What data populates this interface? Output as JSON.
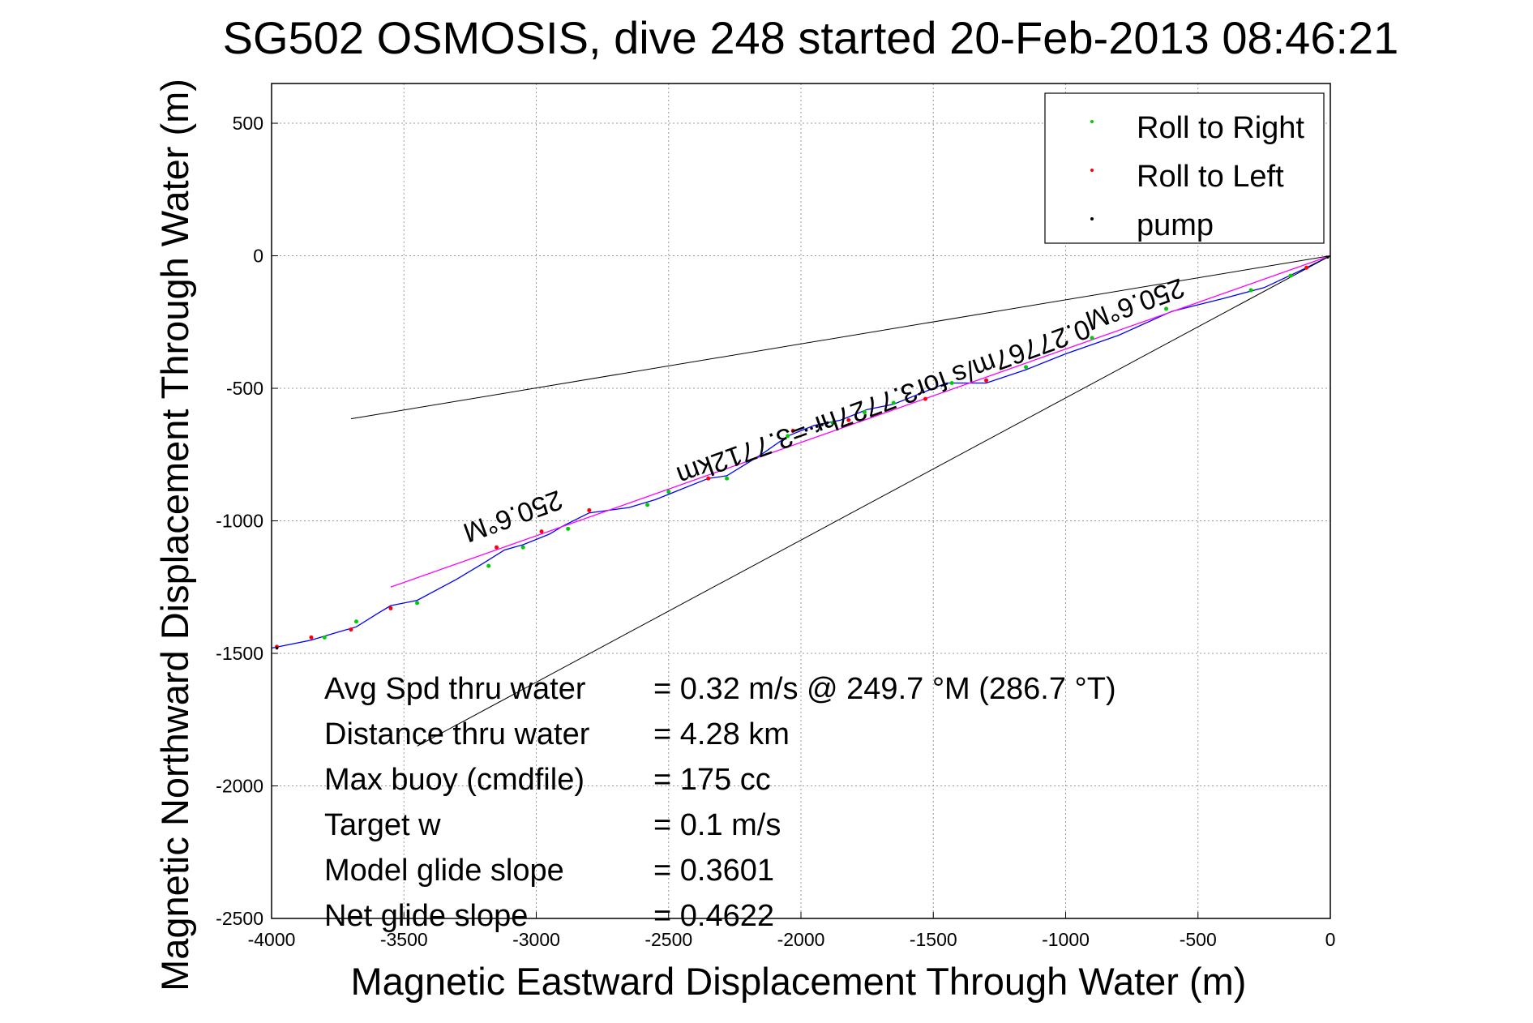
{
  "chart_data": {
    "type": "line",
    "title": "SG502 OSMOSIS, dive 248 started 20-Feb-2013 08:46:21",
    "xlabel": "Magnetic Eastward Displacement Through Water (m)",
    "ylabel": "Magnetic Northward Displacement Through Water (m)",
    "xlim": [
      -4000,
      0
    ],
    "ylim": [
      -2500,
      650
    ],
    "grid": true,
    "x_ticks": [
      "-4000",
      "-3500",
      "-3000",
      "-2500",
      "-2000",
      "-1500",
      "-1000",
      "-500",
      "0"
    ],
    "y_ticks": [
      "500",
      "0",
      "-500",
      "-1000",
      "-1500",
      "-2000",
      "-2500"
    ],
    "legend": {
      "position": "top-right",
      "entries": [
        "Roll to Right",
        "Roll to Left",
        "pump"
      ]
    },
    "colors": {
      "track": "#0000ff",
      "heading_line": "#ff00ff",
      "roll_right": "#00cc00",
      "roll_left": "#ff0000",
      "pump": "#000000",
      "cone": "#000000"
    },
    "series": [
      {
        "x": [
          0,
          -100,
          -250,
          -400,
          -600,
          -800,
          -1000,
          -1150,
          -1300,
          -1450,
          -1550,
          -1650,
          -1750,
          -1850,
          -1950,
          -2050,
          -2150,
          -2280,
          -2350,
          -2450,
          -2550,
          -2650,
          -2800,
          -2900,
          -2950,
          -3050,
          -3120,
          -3200,
          -3300,
          -3450,
          -3550,
          -3600,
          -3680,
          -3750,
          -3850,
          -3950,
          -4000
        ],
        "y": [
          0,
          -50,
          -120,
          -160,
          -210,
          -300,
          -370,
          -430,
          -480,
          -480,
          -520,
          -560,
          -580,
          -620,
          -640,
          -680,
          -750,
          -830,
          -840,
          -880,
          -920,
          -950,
          -970,
          -1020,
          -1050,
          -1090,
          -1110,
          -1160,
          -1220,
          -1300,
          -1320,
          -1350,
          -1400,
          -1420,
          -1450,
          -1470,
          -1480
        ]
      },
      {
        "x": [
          0,
          -3550
        ],
        "y": [
          0,
          -1250
        ]
      },
      {
        "x": [
          0,
          -3700
        ],
        "y": [
          0,
          -615
        ]
      },
      {
        "x": [
          0,
          -3450
        ],
        "y": [
          0,
          -1850
        ]
      }
    ],
    "roll_right_points": {
      "x": [
        -150,
        -300,
        -620,
        -900,
        -1150,
        -1430,
        -1650,
        -1760,
        -1880,
        -2050,
        -2280,
        -2500,
        -2580,
        -2880,
        -3050,
        -3180,
        -3450,
        -3680,
        -3800
      ],
      "y": [
        -75,
        -130,
        -200,
        -310,
        -420,
        -480,
        -555,
        -590,
        -630,
        -680,
        -840,
        -890,
        -940,
        -1030,
        -1100,
        -1170,
        -1310,
        -1380,
        -1440
      ]
    },
    "roll_left_points": {
      "x": [
        -90,
        -1300,
        -1530,
        -1820,
        -2030,
        -2350,
        -2800,
        -2980,
        -3150,
        -3550,
        -3700,
        -3850,
        -3980
      ],
      "y": [
        -45,
        -470,
        -540,
        -620,
        -660,
        -840,
        -960,
        -1040,
        -1100,
        -1330,
        -1410,
        -1440,
        -1475
      ]
    },
    "pump_points": {
      "x": [
        -10,
        -1900,
        -1920,
        -1940,
        -1960,
        -1980,
        -3980
      ],
      "y": [
        -5,
        -630,
        -637,
        -644,
        -651,
        -658,
        -1480
      ]
    },
    "annotations": [
      {
        "text": "250.6°M",
        "x": -3100,
        "y": -950,
        "angle_deg": 160
      },
      {
        "text": "250.6°M",
        "x": -750,
        "y": -150,
        "angle_deg": 160
      },
      {
        "text": "0.27767m/s for3.7727hr =3.7712km",
        "x": -1700,
        "y": -520,
        "angle_deg": 160
      }
    ],
    "stats": [
      {
        "label": "Avg Spd thru water",
        "value": "=  0.32 m/s @ 249.7 °M (286.7 °T)"
      },
      {
        "label": "Distance thru water",
        "value": "=  4.28 km"
      },
      {
        "label": "Max buoy (cmdfile)",
        "value": "= 175 cc"
      },
      {
        "label": "Target w",
        "value": "= 0.1 m/s"
      },
      {
        "label": "Model glide slope",
        "value": "= 0.3601"
      },
      {
        "label": "Net glide slope",
        "value": "= 0.4622"
      }
    ]
  }
}
